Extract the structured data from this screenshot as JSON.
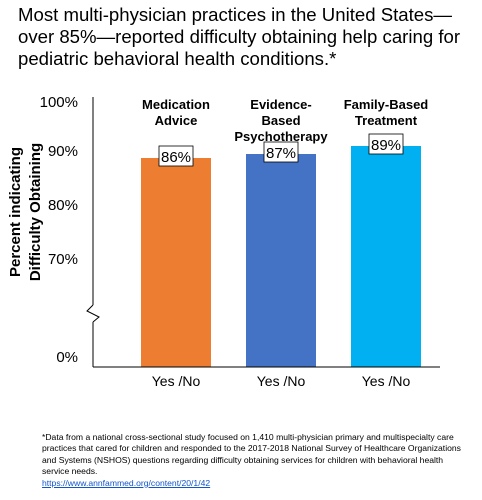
{
  "title": "Most multi-physician practices in the United States—over 85%—reported difficulty obtaining help caring for pediatric behavioral health conditions.*",
  "chart_data": {
    "type": "bar",
    "ylabel_lines": [
      "Percent indicating",
      "Difficulty Obtaining"
    ],
    "y_ticks": [
      "100%",
      "90%",
      "80%",
      "70%",
      "0%"
    ],
    "axis_break": true,
    "ylim": [
      60,
      100
    ],
    "categories": [
      {
        "label_lines": [
          "Medication",
          "Advice"
        ],
        "x_label": "Yes /No",
        "value": 86,
        "value_label": "86%",
        "color": "#ed7d31"
      },
      {
        "label_lines": [
          "Evidence-",
          "Based",
          "Psychotherapy"
        ],
        "x_label": "Yes /No",
        "value": 87,
        "value_label": "87%",
        "color": "#4472c4"
      },
      {
        "label_lines": [
          "Family-Based",
          "Treatment"
        ],
        "x_label": "Yes /No",
        "value": 89,
        "value_label": "89%",
        "color": "#00b0f0"
      }
    ]
  },
  "footnote": {
    "text": "*Data from a national cross-sectional study focused on 1,410 multi-physician primary and multispecialty care practices that cared for children and responded to the 2017-2018 National Survey of Healthcare Organizations and Systems (NSHOS) questions regarding difficulty obtaining services for children with behavioral health service needs.",
    "link": "https://www.annfammed.org/content/20/1/42"
  }
}
